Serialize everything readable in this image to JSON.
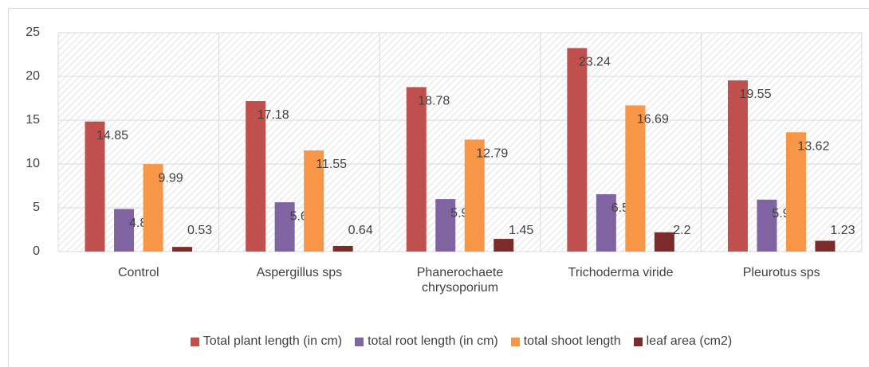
{
  "chart_data": {
    "type": "bar",
    "categories": [
      "Control",
      "Aspergillus sps",
      "Phanerochaete chrysoporium",
      "Trichoderma viride",
      "Pleurotus sps"
    ],
    "series": [
      {
        "name": "Total plant length (in cm)",
        "color": "#c0504d",
        "values": [
          14.85,
          17.18,
          18.78,
          23.24,
          19.55
        ]
      },
      {
        "name": "total root length (in cm)",
        "color": "#8064a2",
        "values": [
          4.86,
          5.63,
          5.99,
          6.55,
          5.93
        ]
      },
      {
        "name": "total shoot length",
        "color": "#f79646",
        "values": [
          9.99,
          11.55,
          12.79,
          16.69,
          13.62
        ]
      },
      {
        "name": "leaf area (cm2)",
        "color": "#7b2c2a",
        "values": [
          0.53,
          0.64,
          1.45,
          2.2,
          1.23
        ]
      }
    ],
    "ylim": [
      0,
      25
    ],
    "yticks": [
      0,
      5,
      10,
      15,
      20,
      25
    ],
    "grid": true,
    "legend": "bottom"
  }
}
